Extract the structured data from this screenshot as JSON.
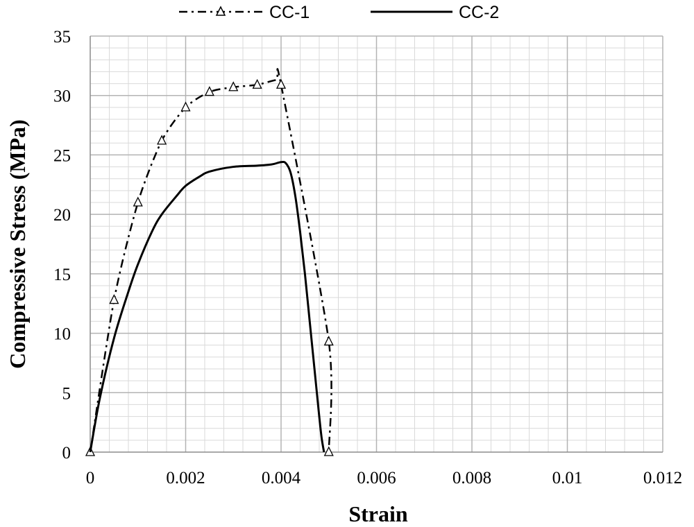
{
  "chart_data": {
    "type": "line",
    "title": "",
    "xlabel": "Strain",
    "ylabel": "Compressive Stress (MPa)",
    "xlim": [
      0,
      0.012
    ],
    "ylim": [
      0,
      35
    ],
    "grid": true,
    "legend_position": "top-center",
    "x_ticks": [
      "0",
      "0.002",
      "0.004",
      "0.006",
      "0.008",
      "0.01",
      "0.012"
    ],
    "y_ticks": [
      "0",
      "5",
      "10",
      "15",
      "20",
      "25",
      "30",
      "35"
    ],
    "series": [
      {
        "name": "CC-1",
        "style": "dash-dot",
        "marker": "triangle",
        "color": "#000000",
        "x": [
          0,
          0.0005,
          0.001,
          0.0015,
          0.002,
          0.0025,
          0.003,
          0.0035,
          0.0039,
          0.004,
          0.005,
          0.005
        ],
        "y": [
          0,
          12.8,
          21.0,
          26.2,
          29.0,
          30.3,
          30.7,
          30.9,
          31.3,
          30.9,
          9.3,
          0
        ],
        "marker_x": [
          0,
          0.0005,
          0.001,
          0.0015,
          0.002,
          0.0025,
          0.003,
          0.0035,
          0.004,
          0.005,
          0.005
        ],
        "marker_y": [
          0,
          12.8,
          21.0,
          26.2,
          29.0,
          30.3,
          30.7,
          30.9,
          30.9,
          9.3,
          0
        ]
      },
      {
        "name": "CC-2",
        "style": "solid",
        "marker": "none",
        "color": "#000000",
        "x": [
          0,
          0.0002,
          0.0005,
          0.0008,
          0.001,
          0.0013,
          0.0015,
          0.0018,
          0.002,
          0.0023,
          0.0025,
          0.003,
          0.0035,
          0.0038,
          0.004,
          0.0041,
          0.0042,
          0.0043,
          0.0044,
          0.0045,
          0.0046,
          0.0047,
          0.0048,
          0.00485,
          0.0049
        ],
        "y": [
          0,
          4.5,
          9.6,
          13.5,
          15.8,
          18.6,
          20.0,
          21.5,
          22.4,
          23.2,
          23.6,
          24.0,
          24.1,
          24.2,
          24.4,
          24.3,
          23.5,
          21.5,
          18.5,
          15.0,
          11.0,
          7.0,
          3.0,
          1.2,
          0
        ]
      }
    ]
  }
}
